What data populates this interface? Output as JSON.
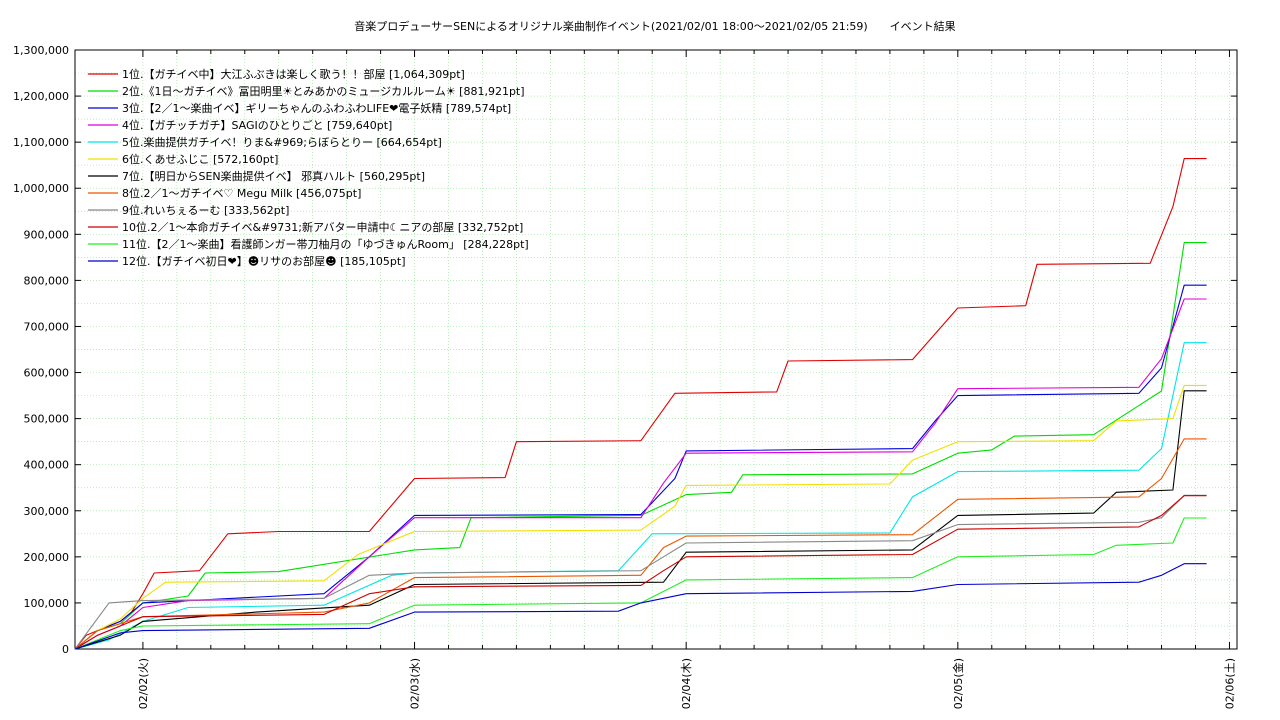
{
  "chart_data": {
    "type": "line",
    "title": "音楽プロデューサーSENによるオリジナル楽曲制作イベント(2021/02/01 18:00～2021/02/05 21:59)　　イベント結果",
    "xlabel": "",
    "ylabel": "",
    "grid": true,
    "legend_position": "top-left",
    "x_range": [
      "2021/02/01 18:00",
      "2021/02/05 21:59"
    ],
    "ylim": [
      0,
      1300000
    ],
    "y_ticks": [
      0,
      100000,
      200000,
      300000,
      400000,
      500000,
      600000,
      700000,
      800000,
      900000,
      1000000,
      1100000,
      1200000,
      1300000
    ],
    "y_tick_labels": [
      "0",
      "100,000",
      "200,000",
      "300,000",
      "400,000",
      "500,000",
      "600,000",
      "700,000",
      "800,000",
      "900,000",
      "1,000,000",
      "1,100,000",
      "1,200,000",
      "1,300,000"
    ],
    "x_ticks": [
      "2021/02/02 00:00",
      "2021/02/03 00:00",
      "2021/02/04 00:00",
      "2021/02/05 00:00",
      "2021/02/06 00:00"
    ],
    "x_tick_labels": [
      "02/02(火)",
      "02/03(水)",
      "02/04(木)",
      "02/05(金)",
      "02/06(土)"
    ],
    "series": [
      {
        "name": "1位.【ガチイベ中】大江ふぶきは楽しく歌う！！部屋 [1,064,309pt]",
        "color": "#e00000",
        "points": [
          [
            "2021/02/01 18:00",
            0
          ],
          [
            "2021/02/01 19:00",
            30000
          ],
          [
            "2021/02/01 20:30",
            45000
          ],
          [
            "2021/02/01 22:00",
            60000
          ],
          [
            "2021/02/01 23:00",
            80000
          ],
          [
            "2021/02/02 00:00",
            120000
          ],
          [
            "2021/02/02 01:00",
            165000
          ],
          [
            "2021/02/02 05:00",
            170000
          ],
          [
            "2021/02/02 07:30",
            250000
          ],
          [
            "2021/02/02 12:00",
            255000
          ],
          [
            "2021/02/02 20:00",
            255000
          ],
          [
            "2021/02/03 00:00",
            370000
          ],
          [
            "2021/02/03 08:00",
            372000
          ],
          [
            "2021/02/03 09:00",
            450000
          ],
          [
            "2021/02/03 20:00",
            452000
          ],
          [
            "2021/02/03 23:00",
            555000
          ],
          [
            "2021/02/04 08:00",
            558000
          ],
          [
            "2021/02/04 09:00",
            625000
          ],
          [
            "2021/02/04 20:00",
            628000
          ],
          [
            "2021/02/05 00:00",
            740000
          ],
          [
            "2021/02/05 06:00",
            745000
          ],
          [
            "2021/02/05 07:00",
            835000
          ],
          [
            "2021/02/05 17:00",
            837000
          ],
          [
            "2021/02/05 19:00",
            960000
          ],
          [
            "2021/02/05 20:00",
            1064309
          ],
          [
            "2021/02/05 21:59",
            1064309
          ]
        ]
      },
      {
        "name": "2位.《1日～ガチイベ》冨田明里☀とみあかのミュージカルルーム☀ [881,921pt]",
        "color": "#00dd00",
        "points": [
          [
            "2021/02/01 18:00",
            0
          ],
          [
            "2021/02/01 20:00",
            40000
          ],
          [
            "2021/02/01 22:00",
            55000
          ],
          [
            "2021/02/02 00:00",
            100000
          ],
          [
            "2021/02/02 04:00",
            115000
          ],
          [
            "2021/02/02 05:30",
            165000
          ],
          [
            "2021/02/02 12:00",
            168000
          ],
          [
            "2021/02/03 00:00",
            215000
          ],
          [
            "2021/02/03 04:00",
            220000
          ],
          [
            "2021/02/03 05:00",
            285000
          ],
          [
            "2021/02/03 20:00",
            290000
          ],
          [
            "2021/02/04 00:00",
            335000
          ],
          [
            "2021/02/04 04:00",
            340000
          ],
          [
            "2021/02/04 05:00",
            378000
          ],
          [
            "2021/02/04 20:00",
            380000
          ],
          [
            "2021/02/05 00:00",
            425000
          ],
          [
            "2021/02/05 03:00",
            432000
          ],
          [
            "2021/02/05 05:00",
            462000
          ],
          [
            "2021/02/05 12:00",
            465000
          ],
          [
            "2021/02/05 18:00",
            560000
          ],
          [
            "2021/02/05 20:00",
            881921
          ],
          [
            "2021/02/05 21:59",
            881921
          ]
        ]
      },
      {
        "name": "3位.【2／1～楽曲イベ】ギリーちゃんのふわふわLIFE❤電子妖精 [789,574pt]",
        "color": "#0000dd",
        "points": [
          [
            "2021/02/01 18:00",
            0
          ],
          [
            "2021/02/01 20:00",
            40000
          ],
          [
            "2021/02/01 22:00",
            60000
          ],
          [
            "2021/02/02 00:00",
            100000
          ],
          [
            "2021/02/02 08:00",
            110000
          ],
          [
            "2021/02/02 16:00",
            120000
          ],
          [
            "2021/02/02 20:00",
            200000
          ],
          [
            "2021/02/03 00:00",
            290000
          ],
          [
            "2021/02/03 20:00",
            292000
          ],
          [
            "2021/02/03 23:00",
            370000
          ],
          [
            "2021/02/04 00:00",
            430000
          ],
          [
            "2021/02/04 20:00",
            435000
          ],
          [
            "2021/02/04 22:00",
            495000
          ],
          [
            "2021/02/05 00:00",
            550000
          ],
          [
            "2021/02/05 16:00",
            555000
          ],
          [
            "2021/02/05 18:00",
            610000
          ],
          [
            "2021/02/05 20:00",
            789574
          ],
          [
            "2021/02/05 21:59",
            789574
          ]
        ]
      },
      {
        "name": "4位.【ガチッチガチ】SAGIのひとりごと [759,640pt]",
        "color": "#dd00dd",
        "points": [
          [
            "2021/02/01 18:00",
            0
          ],
          [
            "2021/02/01 20:00",
            30000
          ],
          [
            "2021/02/01 22:00",
            50000
          ],
          [
            "2021/02/02 00:00",
            90000
          ],
          [
            "2021/02/02 04:00",
            105000
          ],
          [
            "2021/02/02 16:00",
            110000
          ],
          [
            "2021/02/02 20:00",
            200000
          ],
          [
            "2021/02/03 00:00",
            285000
          ],
          [
            "2021/02/03 20:00",
            285000
          ],
          [
            "2021/02/03 22:00",
            360000
          ],
          [
            "2021/02/04 00:00",
            425000
          ],
          [
            "2021/02/04 20:00",
            428000
          ],
          [
            "2021/02/04 22:00",
            490000
          ],
          [
            "2021/02/05 00:00",
            565000
          ],
          [
            "2021/02/05 16:00",
            568000
          ],
          [
            "2021/02/05 18:00",
            630000
          ],
          [
            "2021/02/05 20:00",
            759640
          ],
          [
            "2021/02/05 21:59",
            759640
          ]
        ]
      },
      {
        "name": "5位.楽曲提供ガチイベ！りま&#969;らぼらとりー [664,654pt]",
        "color": "#00e5e5",
        "points": [
          [
            "2021/02/01 18:00",
            0
          ],
          [
            "2021/02/01 21:00",
            20000
          ],
          [
            "2021/02/02 00:00",
            60000
          ],
          [
            "2021/02/02 04:00",
            90000
          ],
          [
            "2021/02/02 16:00",
            95000
          ],
          [
            "2021/02/02 22:00",
            160000
          ],
          [
            "2021/02/03 00:00",
            165000
          ],
          [
            "2021/02/03 18:00",
            170000
          ],
          [
            "2021/02/03 21:00",
            250000
          ],
          [
            "2021/02/04 18:00",
            252000
          ],
          [
            "2021/02/04 20:00",
            330000
          ],
          [
            "2021/02/05 00:00",
            385000
          ],
          [
            "2021/02/05 16:00",
            388000
          ],
          [
            "2021/02/05 18:00",
            435000
          ],
          [
            "2021/02/05 20:00",
            664654
          ],
          [
            "2021/02/05 21:59",
            664654
          ]
        ]
      },
      {
        "name": "6位.くあせふじこ [572,160pt]",
        "color": "#f0e000",
        "points": [
          [
            "2021/02/01 18:00",
            0
          ],
          [
            "2021/02/01 20:00",
            40000
          ],
          [
            "2021/02/01 22:00",
            65000
          ],
          [
            "2021/02/02 00:00",
            110000
          ],
          [
            "2021/02/02 02:00",
            145000
          ],
          [
            "2021/02/02 16:00",
            148000
          ],
          [
            "2021/02/02 19:00",
            205000
          ],
          [
            "2021/02/03 00:00",
            255000
          ],
          [
            "2021/02/03 20:00",
            258000
          ],
          [
            "2021/02/03 23:00",
            310000
          ],
          [
            "2021/02/04 00:00",
            355000
          ],
          [
            "2021/02/04 18:00",
            358000
          ],
          [
            "2021/02/04 20:00",
            410000
          ],
          [
            "2021/02/05 00:00",
            450000
          ],
          [
            "2021/02/05 12:00",
            452000
          ],
          [
            "2021/02/05 14:00",
            495000
          ],
          [
            "2021/02/05 19:00",
            500000
          ],
          [
            "2021/02/05 20:00",
            572160
          ],
          [
            "2021/02/05 21:59",
            572160
          ]
        ]
      },
      {
        "name": "7位.【明日からSEN楽曲提供イベ】 邪真ハルト [560,295pt]",
        "color": "#000000",
        "points": [
          [
            "2021/02/01 18:00",
            0
          ],
          [
            "2021/02/01 22:00",
            30000
          ],
          [
            "2021/02/02 00:00",
            60000
          ],
          [
            "2021/02/02 10:00",
            80000
          ],
          [
            "2021/02/02 20:00",
            95000
          ],
          [
            "2021/02/03 00:00",
            140000
          ],
          [
            "2021/02/03 22:00",
            145000
          ],
          [
            "2021/02/04 00:00",
            210000
          ],
          [
            "2021/02/04 20:00",
            215000
          ],
          [
            "2021/02/05 00:00",
            290000
          ],
          [
            "2021/02/05 12:00",
            295000
          ],
          [
            "2021/02/05 14:00",
            340000
          ],
          [
            "2021/02/05 19:00",
            345000
          ],
          [
            "2021/02/05 20:00",
            560295
          ],
          [
            "2021/02/05 21:59",
            560295
          ]
        ]
      },
      {
        "name": "8位.2／1～ガチイベ♡ Megu Milk [456,075pt]",
        "color": "#ee5500",
        "points": [
          [
            "2021/02/01 18:00",
            0
          ],
          [
            "2021/02/01 20:00",
            40000
          ],
          [
            "2021/02/02 00:00",
            70000
          ],
          [
            "2021/02/02 16:00",
            80000
          ],
          [
            "2021/02/02 20:00",
            100000
          ],
          [
            "2021/02/03 00:00",
            155000
          ],
          [
            "2021/02/03 20:00",
            160000
          ],
          [
            "2021/02/03 22:00",
            220000
          ],
          [
            "2021/02/04 00:00",
            245000
          ],
          [
            "2021/02/04 20:00",
            248000
          ],
          [
            "2021/02/05 00:00",
            325000
          ],
          [
            "2021/02/05 16:00",
            330000
          ],
          [
            "2021/02/05 18:00",
            370000
          ],
          [
            "2021/02/05 20:00",
            456075
          ],
          [
            "2021/02/05 21:59",
            456075
          ]
        ]
      },
      {
        "name": "9位.れいちぇるーむ [333,562pt]",
        "color": "#888888",
        "points": [
          [
            "2021/02/01 18:00",
            0
          ],
          [
            "2021/02/01 21:00",
            100000
          ],
          [
            "2021/02/02 00:00",
            105000
          ],
          [
            "2021/02/02 16:00",
            110000
          ],
          [
            "2021/02/02 20:00",
            160000
          ],
          [
            "2021/02/03 00:00",
            165000
          ],
          [
            "2021/02/03 20:00",
            170000
          ],
          [
            "2021/02/03 22:00",
            200000
          ],
          [
            "2021/02/04 00:00",
            230000
          ],
          [
            "2021/02/04 20:00",
            235000
          ],
          [
            "2021/02/05 00:00",
            270000
          ],
          [
            "2021/02/05 16:00",
            275000
          ],
          [
            "2021/02/05 18:00",
            285000
          ],
          [
            "2021/02/05 20:00",
            333562
          ],
          [
            "2021/02/05 21:59",
            333562
          ]
        ]
      },
      {
        "name": "10位.2／1～本命ガチイベ&#9731;新アバター申請中☾ニアの部屋 [332,752pt]",
        "color": "#cc0000",
        "points": [
          [
            "2021/02/01 18:00",
            0
          ],
          [
            "2021/02/01 20:00",
            30000
          ],
          [
            "2021/02/02 00:00",
            70000
          ],
          [
            "2021/02/02 16:00",
            75000
          ],
          [
            "2021/02/02 20:00",
            120000
          ],
          [
            "2021/02/03 00:00",
            135000
          ],
          [
            "2021/02/03 20:00",
            138000
          ],
          [
            "2021/02/03 22:00",
            170000
          ],
          [
            "2021/02/04 00:00",
            200000
          ],
          [
            "2021/02/04 20:00",
            205000
          ],
          [
            "2021/02/05 00:00",
            260000
          ],
          [
            "2021/02/05 16:00",
            265000
          ],
          [
            "2021/02/05 18:00",
            290000
          ],
          [
            "2021/02/05 20:00",
            332752
          ],
          [
            "2021/02/05 21:59",
            332752
          ]
        ]
      },
      {
        "name": "11位.【2／1～楽曲】看護師ンガー帯刀柚月の「ゆづきゅんRoom」 [284,228pt]",
        "color": "#22ee22",
        "points": [
          [
            "2021/02/01 18:00",
            0
          ],
          [
            "2021/02/01 22:00",
            40000
          ],
          [
            "2021/02/02 00:00",
            50000
          ],
          [
            "2021/02/02 20:00",
            55000
          ],
          [
            "2021/02/03 00:00",
            95000
          ],
          [
            "2021/02/03 20:00",
            100000
          ],
          [
            "2021/02/04 00:00",
            150000
          ],
          [
            "2021/02/04 20:00",
            155000
          ],
          [
            "2021/02/05 00:00",
            200000
          ],
          [
            "2021/02/05 12:00",
            205000
          ],
          [
            "2021/02/05 14:00",
            225000
          ],
          [
            "2021/02/05 19:00",
            230000
          ],
          [
            "2021/02/05 20:00",
            284228
          ],
          [
            "2021/02/05 21:59",
            284228
          ]
        ]
      },
      {
        "name": "12位.【ガチイベ初日❤】☻リサのお部屋☻ [185,105pt]",
        "color": "#0000cc",
        "points": [
          [
            "2021/02/01 18:00",
            0
          ],
          [
            "2021/02/01 22:00",
            35000
          ],
          [
            "2021/02/02 00:00",
            40000
          ],
          [
            "2021/02/02 20:00",
            45000
          ],
          [
            "2021/02/03 00:00",
            80000
          ],
          [
            "2021/02/03 18:00",
            82000
          ],
          [
            "2021/02/03 20:00",
            100000
          ],
          [
            "2021/02/04 00:00",
            120000
          ],
          [
            "2021/02/04 20:00",
            125000
          ],
          [
            "2021/02/05 00:00",
            140000
          ],
          [
            "2021/02/05 16:00",
            145000
          ],
          [
            "2021/02/05 18:00",
            160000
          ],
          [
            "2021/02/05 20:00",
            185105
          ],
          [
            "2021/02/05 21:59",
            185105
          ]
        ]
      }
    ]
  }
}
